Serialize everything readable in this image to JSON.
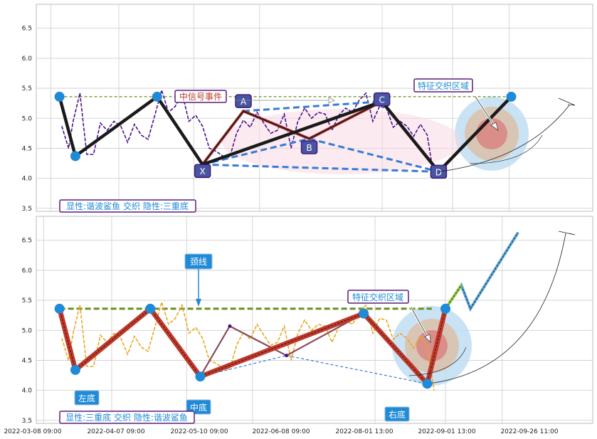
{
  "chart_data": [
    {
      "type": "line",
      "panel": "top",
      "ylim": [
        3.45,
        6.9
      ],
      "yticks": [
        3.5,
        4.0,
        4.5,
        5.0,
        5.5,
        6.0,
        6.5
      ],
      "grid": true,
      "x_range": [
        "2022-03-08",
        "2022-10-08"
      ],
      "price_color": "#4b0f8c",
      "series": [
        {
          "type": "price",
          "x": [
            "2022-03-16",
            "2022-03-19",
            "2022-03-21",
            "2022-03-24",
            "2022-03-27",
            "2022-03-30",
            "2022-04-02",
            "2022-04-05",
            "2022-04-08",
            "2022-04-11",
            "2022-04-14",
            "2022-04-17",
            "2022-04-20",
            "2022-04-23",
            "2022-04-26",
            "2022-04-29",
            "2022-05-02",
            "2022-05-05",
            "2022-05-08",
            "2022-05-11",
            "2022-05-14",
            "2022-05-17",
            "2022-05-20",
            "2022-05-23",
            "2022-05-26",
            "2022-05-29",
            "2022-06-01",
            "2022-06-04",
            "2022-06-07",
            "2022-06-10",
            "2022-06-13",
            "2022-06-16",
            "2022-06-19",
            "2022-06-22",
            "2022-06-25",
            "2022-06-28",
            "2022-07-01",
            "2022-07-04",
            "2022-07-07",
            "2022-07-10",
            "2022-07-13",
            "2022-07-16",
            "2022-07-19",
            "2022-07-22",
            "2022-07-25",
            "2022-07-28",
            "2022-07-31",
            "2022-08-03",
            "2022-08-06",
            "2022-08-09",
            "2022-08-12",
            "2022-08-15",
            "2022-08-18",
            "2022-08-21",
            "2022-08-24",
            "2022-08-27"
          ],
          "y": [
            4.75,
            4.6,
            4.9,
            5.3,
            4.5,
            4.35,
            4.8,
            4.9,
            4.9,
            4.75,
            4.7,
            4.85,
            4.6,
            4.75,
            5.0,
            5.35,
            5.2,
            5.15,
            5.3,
            5.05,
            5.0,
            4.75,
            4.6,
            4.4,
            4.25,
            4.45,
            4.7,
            4.85,
            4.95,
            5.05,
            4.8,
            4.85,
            4.75,
            4.95,
            4.6,
            4.9,
            5.05,
            5.1,
            5.05,
            4.95,
            4.9,
            5.0,
            5.05,
            5.2,
            5.25,
            5.3,
            5.05,
            5.15,
            5.05,
            4.95,
            4.9,
            4.75,
            4.8,
            4.85,
            4.6,
            4.1
          ]
        },
        {
          "type": "zigzag",
          "name": "",
          "x": [
            "2022-03-15",
            "2022-03-22",
            "2022-04-27",
            "2022-05-17",
            "2022-08-04",
            "2022-08-29",
            "2022-09-30"
          ],
          "y": [
            5.36,
            4.37,
            5.36,
            4.23,
            5.28,
            4.11,
            5.36
          ]
        },
        {
          "type": "pattern",
          "x": [
            "2022-05-17",
            "2022-06-04",
            "2022-07-03",
            "2022-08-04",
            "2022-08-29"
          ],
          "y": [
            4.23,
            5.12,
            4.66,
            5.28,
            4.11
          ]
        }
      ],
      "point_labels": [
        {
          "text": "X",
          "x": "2022-05-17",
          "y": 4.23
        },
        {
          "text": "A",
          "x": "2022-06-04",
          "y": 5.12
        },
        {
          "text": "B",
          "x": "2022-07-03",
          "y": 4.66
        },
        {
          "text": "C",
          "x": "2022-08-04",
          "y": 5.28
        },
        {
          "text": "D",
          "x": "2022-08-29",
          "y": 4.11
        }
      ],
      "hline": 5.36,
      "annotations": {
        "signal": "中信号事件",
        "zone": "特征交织区域",
        "status": "显性:谐波鲨鱼 交织 隐性:三重底"
      }
    },
    {
      "type": "line",
      "panel": "bottom",
      "ylim": [
        3.45,
        6.9
      ],
      "yticks": [
        3.5,
        4.0,
        4.5,
        5.0,
        5.5,
        6.0,
        6.5
      ],
      "grid": true,
      "x_range": [
        "2022-03-08",
        "2022-10-08"
      ],
      "price_color": "#e8a820",
      "xticks": [
        "2022-03-08 09:00",
        "2022-04-07 09:00",
        "2022-05-10 09:00",
        "2022-06-08 09:00",
        "2022-08-01 13:00",
        "2022-09-01 13:00",
        "2022-09-26 11:00"
      ],
      "series": [
        {
          "type": "price",
          "x": [
            "2022-03-16",
            "2022-03-19",
            "2022-03-21",
            "2022-03-24",
            "2022-03-27",
            "2022-03-30",
            "2022-04-02",
            "2022-04-05",
            "2022-04-08",
            "2022-04-11",
            "2022-04-14",
            "2022-04-17",
            "2022-04-20",
            "2022-04-23",
            "2022-04-26",
            "2022-04-29",
            "2022-05-02",
            "2022-05-05",
            "2022-05-08",
            "2022-05-11",
            "2022-05-14",
            "2022-05-17",
            "2022-05-20",
            "2022-05-23",
            "2022-05-26",
            "2022-05-29",
            "2022-06-01",
            "2022-06-04",
            "2022-06-07",
            "2022-06-10",
            "2022-06-13",
            "2022-06-16",
            "2022-06-19",
            "2022-06-22",
            "2022-06-25",
            "2022-06-28",
            "2022-07-01",
            "2022-07-04",
            "2022-07-07",
            "2022-07-10",
            "2022-07-13",
            "2022-07-16",
            "2022-07-19",
            "2022-07-22",
            "2022-07-25",
            "2022-07-28",
            "2022-07-31",
            "2022-08-03",
            "2022-08-06",
            "2022-08-09",
            "2022-08-12",
            "2022-08-15",
            "2022-08-18",
            "2022-08-21",
            "2022-08-24",
            "2022-08-27"
          ],
          "y": [
            4.75,
            4.6,
            4.9,
            5.3,
            4.5,
            4.35,
            4.8,
            4.9,
            4.9,
            4.75,
            4.7,
            4.85,
            4.6,
            4.75,
            5.0,
            5.35,
            5.2,
            5.15,
            5.3,
            5.05,
            5.0,
            4.75,
            4.6,
            4.4,
            4.25,
            4.45,
            4.7,
            4.85,
            4.95,
            5.05,
            4.8,
            4.85,
            4.75,
            4.95,
            4.6,
            4.9,
            5.05,
            5.1,
            5.05,
            4.95,
            4.9,
            5.0,
            5.05,
            5.2,
            5.25,
            5.3,
            5.05,
            5.15,
            5.05,
            4.95,
            4.9,
            4.75,
            4.8,
            4.85,
            4.6,
            4.1
          ]
        },
        {
          "type": "zigzag",
          "x": [
            "2022-03-15",
            "2022-03-22",
            "2022-04-24",
            "2022-05-16",
            "2022-07-27",
            "2022-08-24",
            "2022-09-01"
          ],
          "y": [
            5.36,
            4.34,
            5.36,
            4.23,
            5.28,
            4.11,
            5.36
          ]
        },
        {
          "type": "projection",
          "x": [
            "2022-09-01",
            "2022-09-08",
            "2022-09-12",
            "2022-10-03"
          ],
          "y": [
            5.36,
            5.75,
            5.36,
            6.63
          ]
        },
        {
          "type": "pattern",
          "x": [
            "2022-05-16",
            "2022-05-29",
            "2022-06-23",
            "2022-07-27"
          ],
          "y": [
            4.23,
            5.07,
            4.58,
            5.28
          ]
        }
      ],
      "hline": 5.36,
      "annotations": {
        "neckline": "颈线",
        "left": "左底",
        "middle": "中底",
        "right": "右底",
        "zone": "特征交织区域",
        "status": "显性:三重底 交织 隐性:谐波鲨鱼"
      }
    }
  ],
  "colors": {
    "grid": "#cccccc",
    "zigzag_top": "#1a1a1a",
    "zigzag_bottom": "#c0392b",
    "node": "#1f8ad6",
    "dash_blue": "#3a7bd5",
    "hline": "#6b8e23",
    "label_box": "#4a55a2",
    "label_border": "#3b1a7a",
    "annot_border": "#5b1c7d",
    "annot_text_red": "#c0392b",
    "annot_text_blue": "#1f8ad6",
    "target_blue": "#bcdcf2",
    "target_tan": "#dcc0a8",
    "target_red": "#d98080"
  }
}
